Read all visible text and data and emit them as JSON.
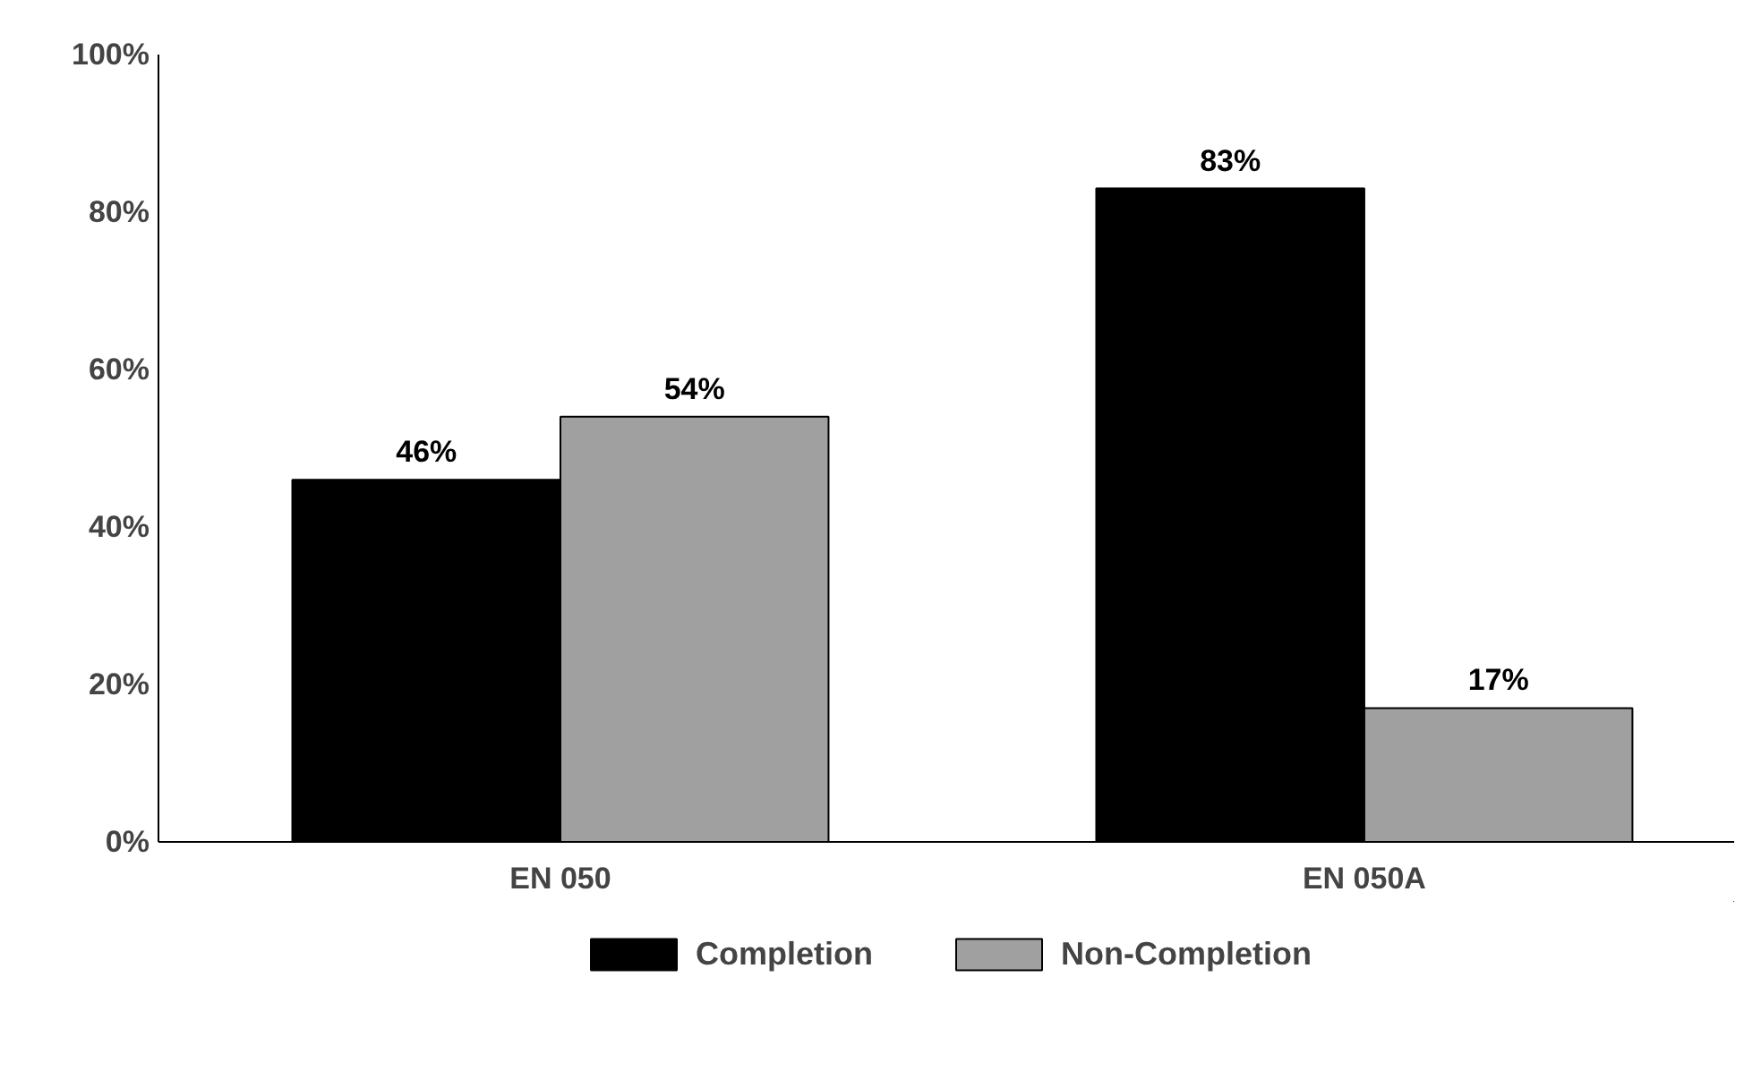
{
  "chart_data": {
    "type": "bar",
    "categories": [
      "EN 050",
      "EN 050A"
    ],
    "series": [
      {
        "name": "Completion",
        "color": "#000000",
        "values": [
          46,
          83
        ],
        "value_labels": [
          "46%",
          "83%"
        ]
      },
      {
        "name": "Non-Completion",
        "color": "#a0a0a0",
        "values": [
          54,
          17
        ],
        "value_labels": [
          "54%",
          "17%"
        ]
      }
    ],
    "ylim": [
      0,
      100
    ],
    "yticks": [
      {
        "value": 0,
        "label": "0%"
      },
      {
        "value": 20,
        "label": "20%"
      },
      {
        "value": 40,
        "label": "40%"
      },
      {
        "value": 60,
        "label": "60%"
      },
      {
        "value": 80,
        "label": "80%"
      },
      {
        "value": 100,
        "label": "100%"
      }
    ],
    "grid": false,
    "legend": "bottom"
  }
}
